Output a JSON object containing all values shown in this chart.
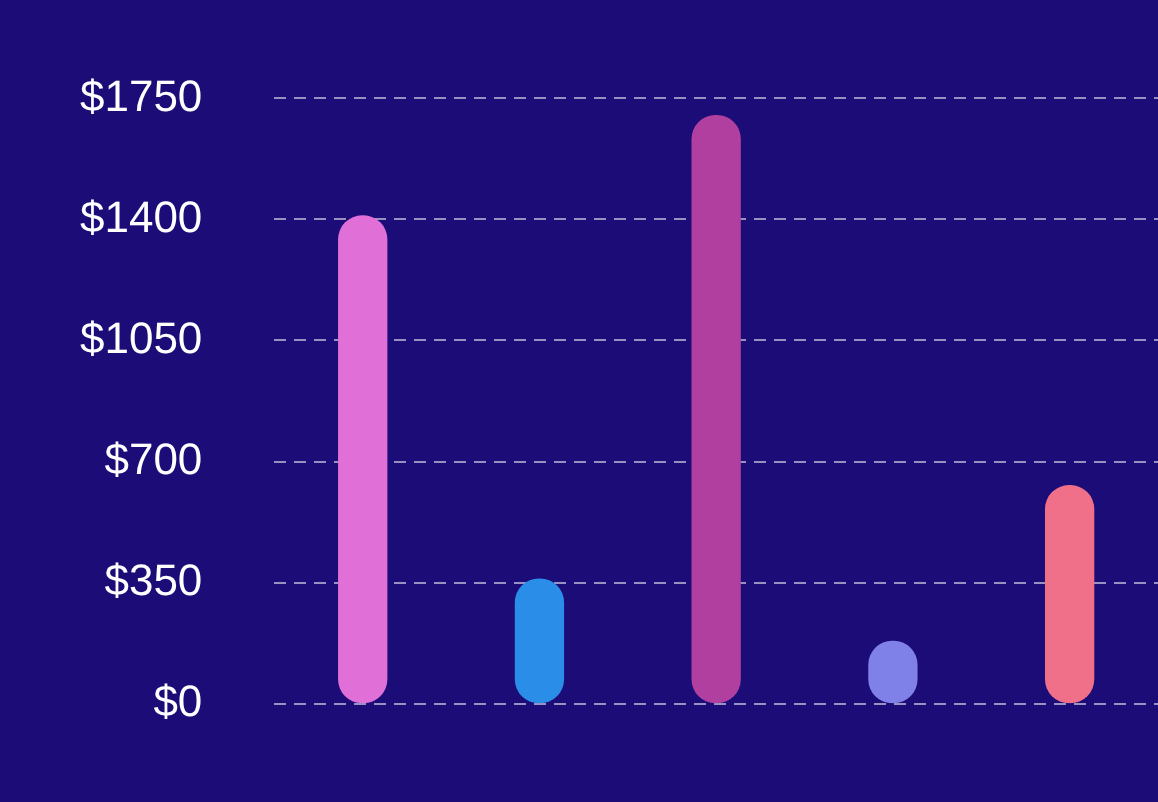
{
  "chart_data": {
    "type": "bar",
    "categories": [
      null,
      null,
      null,
      null,
      null
    ],
    "values": [
      1410,
      360,
      1700,
      180,
      630
    ],
    "colors": [
      "#e070d8",
      "#2a8ee8",
      "#b03fa0",
      "#7f80e8",
      "#f0708a"
    ],
    "ylim": [
      0,
      1750
    ],
    "yticks": [
      {
        "value": 0,
        "label": "$0"
      },
      {
        "value": 350,
        "label": "$350"
      },
      {
        "value": 700,
        "label": "$700"
      },
      {
        "value": 1050,
        "label": "$1050"
      },
      {
        "value": 1400,
        "label": "$1400"
      },
      {
        "value": 1750,
        "label": "$1750"
      }
    ],
    "grid": "y",
    "legend": false
  }
}
